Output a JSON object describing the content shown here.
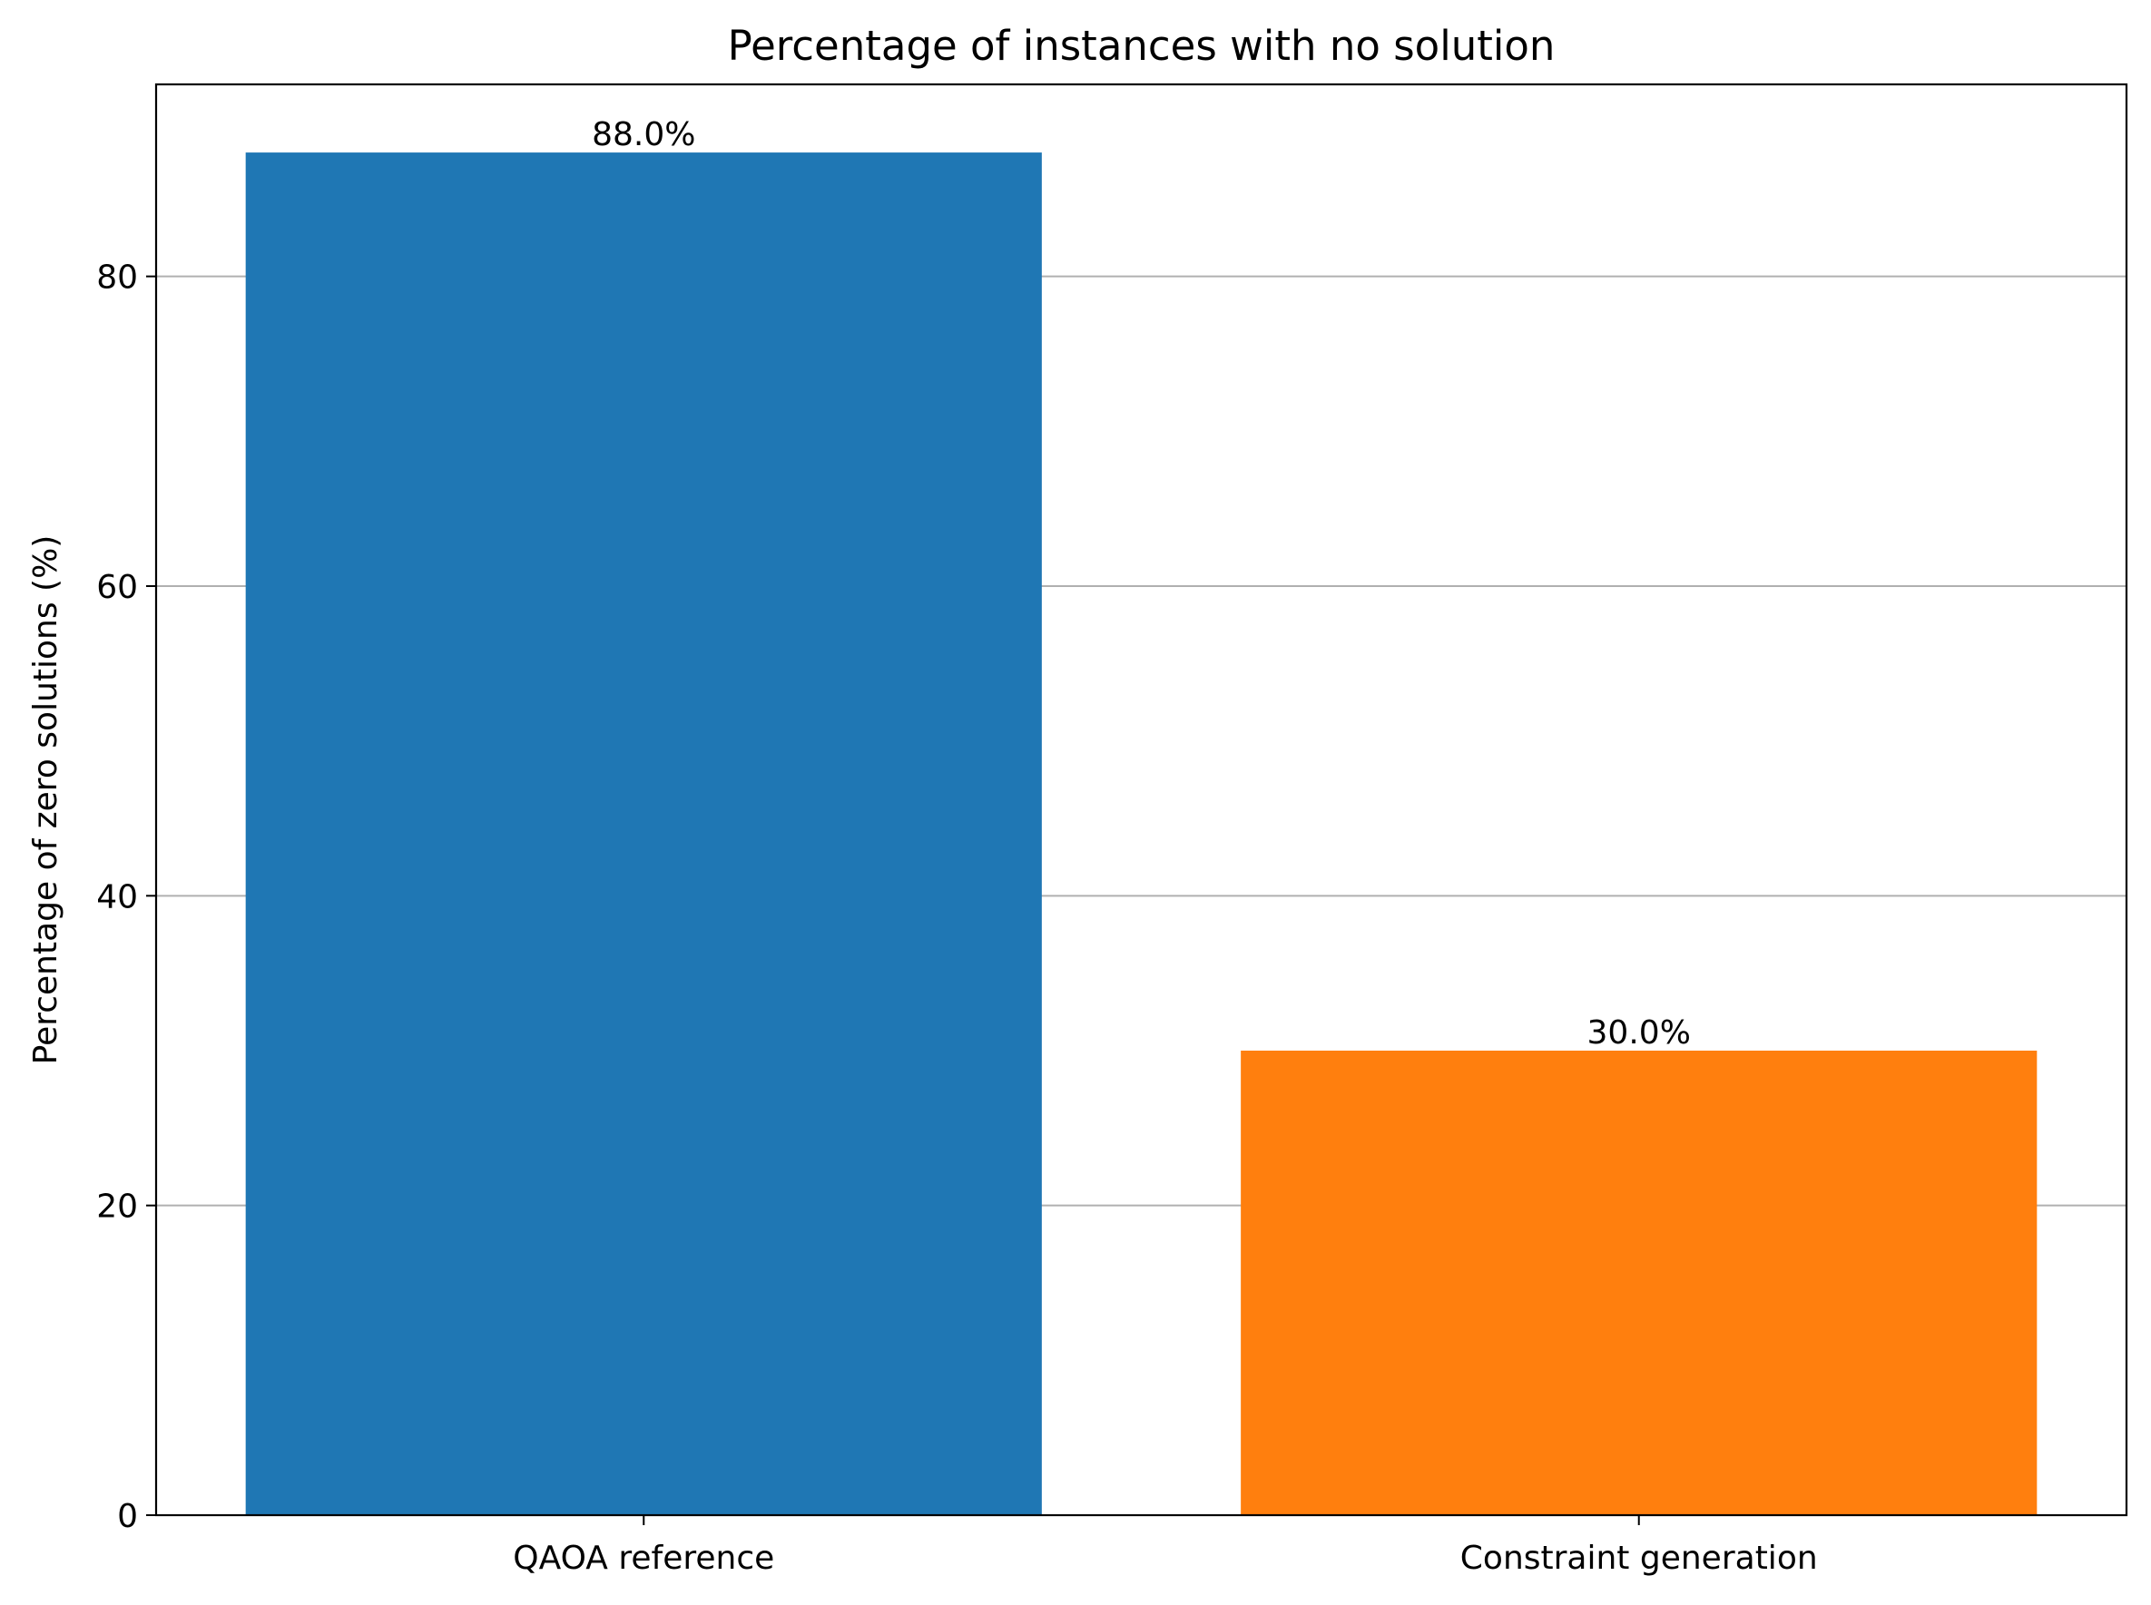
{
  "chart_data": {
    "type": "bar",
    "title": "Percentage of instances with no solution",
    "xlabel": "",
    "ylabel": "Percentage of zero solutions (%)",
    "categories": [
      "QAOA reference",
      "Constraint generation"
    ],
    "values": [
      88.0,
      30.0
    ],
    "data_labels": [
      "88.0%",
      "30.0%"
    ],
    "colors": [
      "#1f77b4",
      "#ff7f0e"
    ],
    "ylim": [
      0,
      92.4
    ],
    "yticks": [
      0,
      20,
      40,
      60,
      80
    ],
    "grid": "y-major",
    "grid_color": "#b0b0b0"
  }
}
